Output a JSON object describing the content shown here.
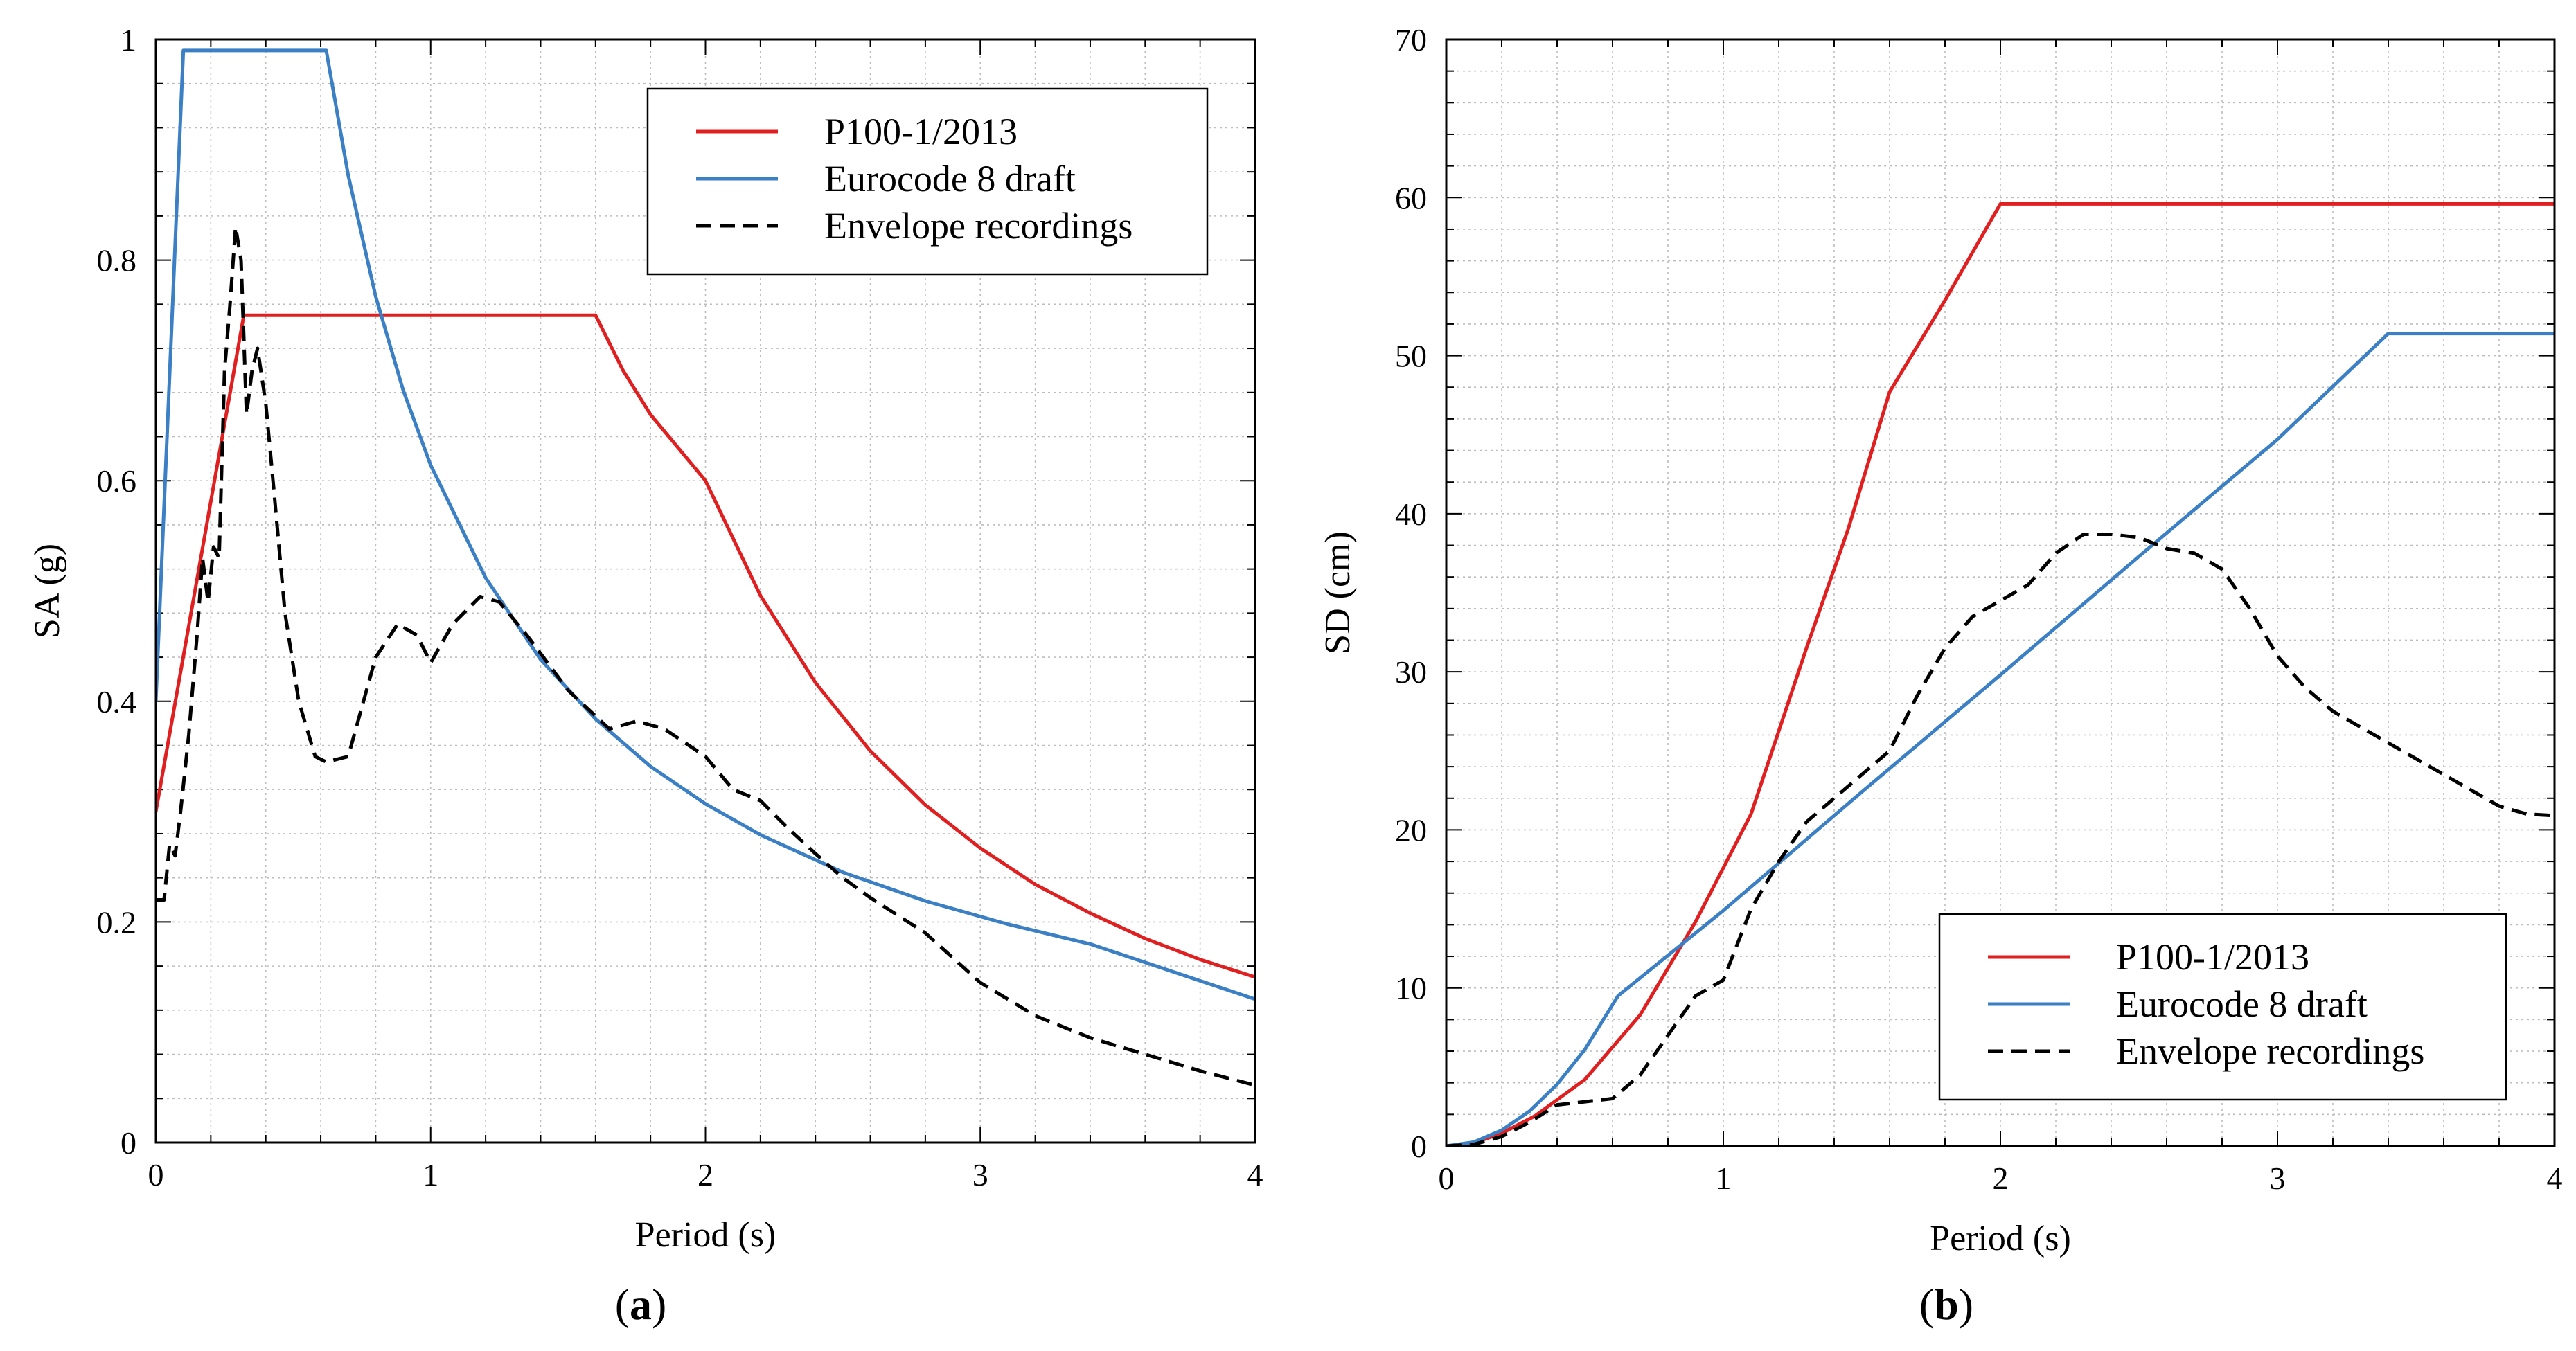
{
  "figure": {
    "panels": [
      "a",
      "b"
    ]
  },
  "chart_data": [
    {
      "type": "line",
      "panel_label": "a",
      "xlabel": "Period (s)",
      "ylabel": "SA (g)",
      "xlim": [
        0,
        4
      ],
      "ylim": [
        0,
        1
      ],
      "xticks": [
        0,
        1,
        2,
        3,
        4
      ],
      "yticks": [
        0,
        0.2,
        0.4,
        0.6,
        0.8,
        1
      ],
      "ytick_labels": [
        "0",
        "0.2",
        "0.4",
        "0.6",
        "0.8",
        "1"
      ],
      "grid": true,
      "legend_position": "top-right",
      "series": [
        {
          "name": "P100-1/2013",
          "color": "#e02020",
          "dash": "solid",
          "x": [
            0,
            0.32,
            1.6,
            1.7,
            1.8,
            2.0,
            2.2,
            2.4,
            2.6,
            2.8,
            3.0,
            3.2,
            3.4,
            3.6,
            3.8,
            4.0
          ],
          "y": [
            0.3,
            0.75,
            0.75,
            0.7,
            0.66,
            0.6,
            0.496,
            0.417,
            0.355,
            0.306,
            0.267,
            0.234,
            0.208,
            0.185,
            0.166,
            0.15
          ]
        },
        {
          "name": "Eurocode 8 draft",
          "color": "#3b7fc4",
          "dash": "solid",
          "x": [
            0,
            0.1,
            0.62,
            0.7,
            0.8,
            0.9,
            1.0,
            1.2,
            1.4,
            1.6,
            1.8,
            2.0,
            2.2,
            2.5,
            2.8,
            3.1,
            3.4,
            3.7,
            4.0
          ],
          "y": [
            0.4,
            0.99,
            0.99,
            0.877,
            0.767,
            0.682,
            0.614,
            0.512,
            0.438,
            0.384,
            0.341,
            0.307,
            0.279,
            0.245,
            0.219,
            0.198,
            0.18,
            0.155,
            0.13
          ]
        },
        {
          "name": "Envelope recordings",
          "color": "#000000",
          "dash": "dashed",
          "x": [
            0,
            0.03,
            0.05,
            0.07,
            0.09,
            0.12,
            0.15,
            0.17,
            0.19,
            0.21,
            0.23,
            0.25,
            0.27,
            0.29,
            0.31,
            0.33,
            0.35,
            0.37,
            0.4,
            0.43,
            0.47,
            0.52,
            0.58,
            0.62,
            0.7,
            0.8,
            0.88,
            0.95,
            1.0,
            1.08,
            1.18,
            1.25,
            1.35,
            1.5,
            1.65,
            1.75,
            1.85,
            2.0,
            2.1,
            2.2,
            2.3,
            2.4,
            2.5,
            2.6,
            2.8,
            3.0,
            3.2,
            3.4,
            3.6,
            3.8,
            4.0
          ],
          "y": [
            0.22,
            0.22,
            0.27,
            0.26,
            0.3,
            0.37,
            0.46,
            0.53,
            0.49,
            0.54,
            0.53,
            0.7,
            0.76,
            0.83,
            0.8,
            0.66,
            0.7,
            0.72,
            0.67,
            0.59,
            0.48,
            0.4,
            0.35,
            0.345,
            0.35,
            0.44,
            0.47,
            0.46,
            0.435,
            0.47,
            0.495,
            0.49,
            0.46,
            0.41,
            0.375,
            0.382,
            0.375,
            0.35,
            0.32,
            0.31,
            0.285,
            0.262,
            0.24,
            0.222,
            0.19,
            0.145,
            0.115,
            0.095,
            0.08,
            0.065,
            0.052
          ]
        }
      ]
    },
    {
      "type": "line",
      "panel_label": "b",
      "xlabel": "Period (s)",
      "ylabel": "SD (cm)",
      "xlim": [
        0,
        4
      ],
      "ylim": [
        0,
        70
      ],
      "xticks": [
        0,
        1,
        2,
        3,
        4
      ],
      "yticks": [
        0,
        10,
        20,
        30,
        40,
        50,
        60,
        70
      ],
      "ytick_labels": [
        "0",
        "10",
        "20",
        "30",
        "40",
        "50",
        "60",
        "70"
      ],
      "grid": true,
      "legend_position": "bottom-right",
      "series": [
        {
          "name": "P100-1/2013",
          "color": "#e02020",
          "dash": "solid",
          "x": [
            0,
            0.1,
            0.2,
            0.32,
            0.5,
            0.7,
            0.9,
            1.1,
            1.3,
            1.45,
            1.6,
            1.8,
            2.0,
            2.5,
            3.0,
            3.5,
            4.0
          ],
          "y": [
            0,
            0.2,
            0.8,
            1.9,
            4.2,
            8.3,
            14.2,
            21.0,
            31.5,
            39.0,
            47.7,
            53.5,
            59.6,
            59.6,
            59.6,
            59.6,
            59.6
          ]
        },
        {
          "name": "Eurocode 8 draft",
          "color": "#3b7fc4",
          "dash": "solid",
          "x": [
            0,
            0.1,
            0.2,
            0.3,
            0.4,
            0.5,
            0.62,
            1.0,
            1.5,
            2.0,
            2.5,
            3.0,
            3.4,
            3.7,
            4.0
          ],
          "y": [
            0,
            0.25,
            1.0,
            2.2,
            3.9,
            6.1,
            9.5,
            14.9,
            22.4,
            29.8,
            37.3,
            44.7,
            51.4,
            51.4,
            51.4
          ]
        },
        {
          "name": "Envelope recordings",
          "color": "#000000",
          "dash": "dashed",
          "x": [
            0,
            0.1,
            0.2,
            0.3,
            0.4,
            0.5,
            0.6,
            0.7,
            0.8,
            0.9,
            1.0,
            1.1,
            1.2,
            1.3,
            1.4,
            1.5,
            1.6,
            1.7,
            1.8,
            1.9,
            2.0,
            2.1,
            2.2,
            2.3,
            2.4,
            2.5,
            2.6,
            2.7,
            2.8,
            2.9,
            3.0,
            3.1,
            3.2,
            3.4,
            3.6,
            3.8,
            3.9,
            4.0
          ],
          "y": [
            0,
            0.1,
            0.6,
            1.5,
            2.6,
            2.8,
            3.0,
            4.5,
            7.0,
            9.5,
            10.5,
            15.0,
            18.0,
            20.5,
            22.0,
            23.5,
            25.0,
            28.5,
            31.5,
            33.5,
            34.5,
            35.5,
            37.5,
            38.7,
            38.7,
            38.5,
            37.8,
            37.5,
            36.5,
            34.0,
            31.0,
            29.0,
            27.5,
            25.5,
            23.5,
            21.5,
            21.0,
            20.9
          ]
        }
      ]
    }
  ]
}
